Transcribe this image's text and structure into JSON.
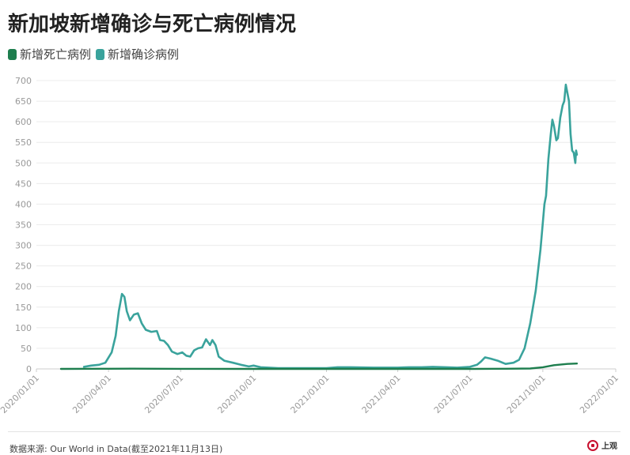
{
  "title": "新加坡新增确诊与死亡病例情况",
  "legend": [
    {
      "label": "新增死亡病例",
      "color": "#1e7e4e"
    },
    {
      "label": "新增确诊病例",
      "color": "#3aa39c"
    }
  ],
  "source": "数据来源: Our World in Data(截至2021年11月13日)",
  "logo_text": "上观",
  "chart_data": {
    "type": "line",
    "title": "新加坡新增确诊与死亡病例情况",
    "xlabel": "",
    "ylabel": "",
    "ylim": [
      0,
      700
    ],
    "yticks": [
      0,
      50,
      100,
      150,
      200,
      250,
      300,
      350,
      400,
      450,
      500,
      550,
      600,
      650,
      700
    ],
    "xticks": [
      "2020/01/01",
      "2020/04/01",
      "2020/07/01",
      "2020/10/01",
      "2021/01/01",
      "2021/04/01",
      "2021/07/01",
      "2021/10/01",
      "2022/01/01"
    ],
    "grid": true,
    "legend_position": "top-left",
    "series": [
      {
        "name": "新增死亡病例",
        "color": "#1e7e4e",
        "points": [
          [
            "2020/02/01",
            0
          ],
          [
            "2020/04/01",
            0.3
          ],
          [
            "2020/05/01",
            0.5
          ],
          [
            "2020/07/01",
            0.2
          ],
          [
            "2020/10/01",
            0
          ],
          [
            "2021/01/01",
            0
          ],
          [
            "2021/04/01",
            0
          ],
          [
            "2021/07/01",
            0
          ],
          [
            "2021/08/15",
            0.3
          ],
          [
            "2021/09/15",
            1
          ],
          [
            "2021/10/01",
            4
          ],
          [
            "2021/10/15",
            9
          ],
          [
            "2021/11/01",
            12
          ],
          [
            "2021/11/13",
            13
          ]
        ]
      },
      {
        "name": "新增确诊病例",
        "color": "#3aa39c",
        "points": [
          [
            "2020/03/01",
            5
          ],
          [
            "2020/03/10",
            8
          ],
          [
            "2020/03/20",
            10
          ],
          [
            "2020/03/28",
            15
          ],
          [
            "2020/04/05",
            40
          ],
          [
            "2020/04/10",
            80
          ],
          [
            "2020/04/14",
            140
          ],
          [
            "2020/04/18",
            182
          ],
          [
            "2020/04/21",
            175
          ],
          [
            "2020/04/24",
            140
          ],
          [
            "2020/04/28",
            118
          ],
          [
            "2020/05/03",
            132
          ],
          [
            "2020/05/08",
            135
          ],
          [
            "2020/05/13",
            110
          ],
          [
            "2020/05/18",
            95
          ],
          [
            "2020/05/25",
            90
          ],
          [
            "2020/06/01",
            92
          ],
          [
            "2020/06/05",
            70
          ],
          [
            "2020/06/10",
            68
          ],
          [
            "2020/06/15",
            58
          ],
          [
            "2020/06/20",
            42
          ],
          [
            "2020/06/27",
            36
          ],
          [
            "2020/07/03",
            40
          ],
          [
            "2020/07/08",
            32
          ],
          [
            "2020/07/13",
            30
          ],
          [
            "2020/07/18",
            45
          ],
          [
            "2020/07/23",
            50
          ],
          [
            "2020/07/28",
            52
          ],
          [
            "2020/08/02",
            72
          ],
          [
            "2020/08/07",
            58
          ],
          [
            "2020/08/10",
            70
          ],
          [
            "2020/08/14",
            58
          ],
          [
            "2020/08/18",
            30
          ],
          [
            "2020/08/25",
            20
          ],
          [
            "2020/09/05",
            15
          ],
          [
            "2020/09/15",
            10
          ],
          [
            "2020/09/25",
            6
          ],
          [
            "2020/10/01",
            8
          ],
          [
            "2020/10/10",
            4
          ],
          [
            "2020/11/01",
            2
          ],
          [
            "2020/12/01",
            2
          ],
          [
            "2021/01/01",
            2
          ],
          [
            "2021/01/15",
            4
          ],
          [
            "2021/02/01",
            4
          ],
          [
            "2021/03/01",
            3
          ],
          [
            "2021/04/01",
            3
          ],
          [
            "2021/04/15",
            4
          ],
          [
            "2021/05/01",
            4
          ],
          [
            "2021/05/15",
            5
          ],
          [
            "2021/06/01",
            4
          ],
          [
            "2021/06/15",
            3
          ],
          [
            "2021/07/01",
            5
          ],
          [
            "2021/07/10",
            10
          ],
          [
            "2021/07/15",
            18
          ],
          [
            "2021/07/20",
            28
          ],
          [
            "2021/07/27",
            25
          ],
          [
            "2021/08/05",
            20
          ],
          [
            "2021/08/15",
            12
          ],
          [
            "2021/08/25",
            15
          ],
          [
            "2021/09/01",
            22
          ],
          [
            "2021/09/08",
            50
          ],
          [
            "2021/09/15",
            110
          ],
          [
            "2021/09/22",
            190
          ],
          [
            "2021/09/28",
            290
          ],
          [
            "2021/10/03",
            400
          ],
          [
            "2021/10/05",
            420
          ],
          [
            "2021/10/08",
            510
          ],
          [
            "2021/10/11",
            570
          ],
          [
            "2021/10/13",
            605
          ],
          [
            "2021/10/15",
            590
          ],
          [
            "2021/10/18",
            555
          ],
          [
            "2021/10/20",
            560
          ],
          [
            "2021/10/23",
            610
          ],
          [
            "2021/10/26",
            640
          ],
          [
            "2021/10/28",
            650
          ],
          [
            "2021/10/30",
            690
          ],
          [
            "2021/11/01",
            670
          ],
          [
            "2021/11/03",
            650
          ],
          [
            "2021/11/05",
            570
          ],
          [
            "2021/11/07",
            530
          ],
          [
            "2021/11/09",
            525
          ],
          [
            "2021/11/11",
            500
          ],
          [
            "2021/11/12",
            530
          ],
          [
            "2021/11/13",
            520
          ]
        ]
      }
    ]
  }
}
